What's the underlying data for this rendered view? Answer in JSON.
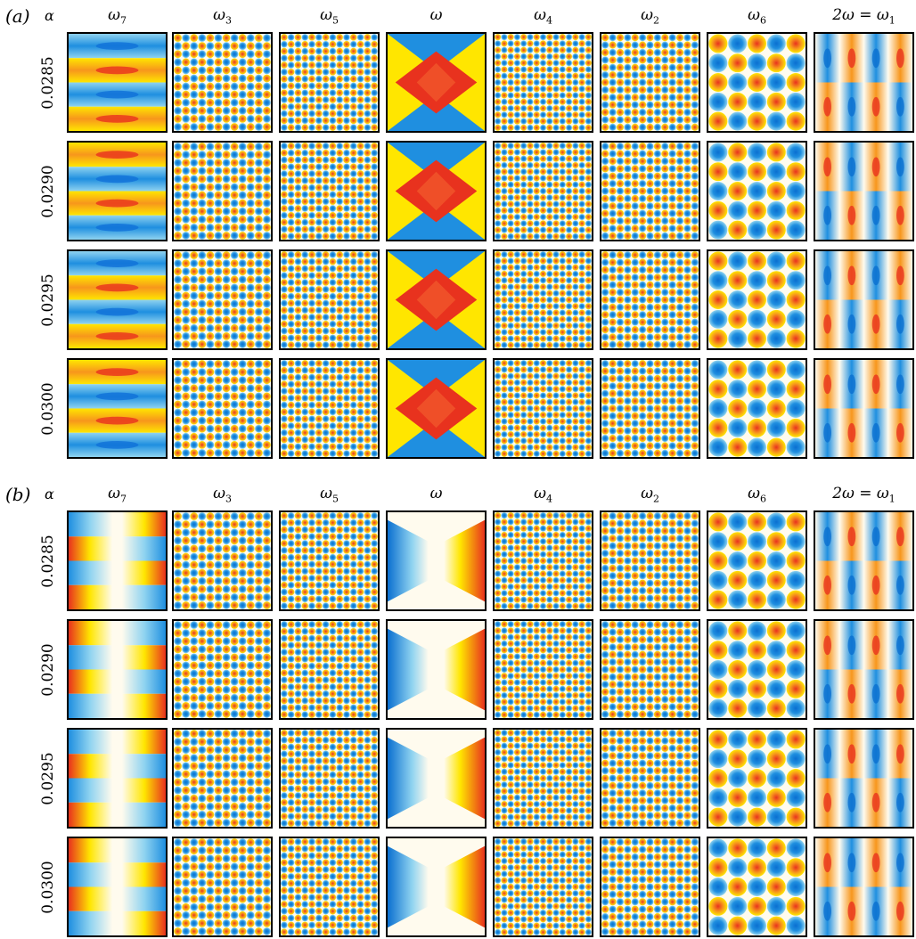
{
  "panels": [
    {
      "label": "(a)",
      "alpha_header": "α",
      "columns": [
        {
          "base": "ω",
          "sub": "7",
          "mode": "w7a"
        },
        {
          "base": "ω",
          "sub": "3",
          "mode": "w3"
        },
        {
          "base": "ω",
          "sub": "5",
          "mode": "w5"
        },
        {
          "base": "ω",
          "sub": "",
          "mode": "wa"
        },
        {
          "base": "ω",
          "sub": "4",
          "mode": "w4"
        },
        {
          "base": "ω",
          "sub": "2",
          "mode": "w2"
        },
        {
          "base": "ω",
          "sub": "6",
          "mode": "w6"
        },
        {
          "base": "2ω = ω",
          "sub": "1",
          "mode": "w1"
        }
      ],
      "rows": [
        "0.0285",
        "0.0290",
        "0.0295",
        "0.0300"
      ]
    },
    {
      "label": "(b)",
      "alpha_header": "α",
      "columns": [
        {
          "base": "ω",
          "sub": "7",
          "mode": "w7b"
        },
        {
          "base": "ω",
          "sub": "3",
          "mode": "w3"
        },
        {
          "base": "ω",
          "sub": "5",
          "mode": "w5"
        },
        {
          "base": "ω",
          "sub": "",
          "mode": "wb"
        },
        {
          "base": "ω",
          "sub": "4",
          "mode": "w4"
        },
        {
          "base": "ω",
          "sub": "2",
          "mode": "w2"
        },
        {
          "base": "ω",
          "sub": "6",
          "mode": "w6"
        },
        {
          "base": "2ω = ω",
          "sub": "1",
          "mode": "w1"
        }
      ],
      "rows": [
        "0.0285",
        "0.0290",
        "0.0295",
        "0.0300"
      ]
    }
  ],
  "colors": {
    "blue": "#1f8fe0",
    "light_blue": "#8fd3f0",
    "white": "#fffbee",
    "yellow": "#ffe600",
    "orange": "#f7961c",
    "red": "#e8321e"
  }
}
